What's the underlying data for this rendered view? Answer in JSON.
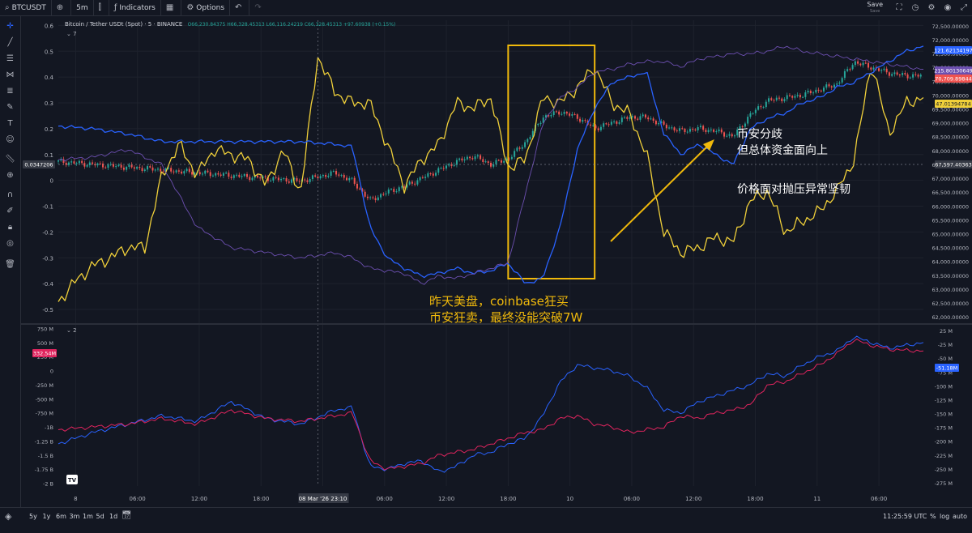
{
  "toolbar": {
    "symbol": "BTCUSDT",
    "interval": "5m",
    "indicators": "Indicators",
    "options": "Options",
    "save": "Save",
    "save_sub": "Save"
  },
  "legend": {
    "title": "Bitcoin / Tether USDt (Spot) · 5 · BINANCE",
    "ohlc": "O66,230.84375 H66,328.45313 L66,116.24219 C66,328.45313 +97.60938 (+0.15%)",
    "indicator1": "7",
    "indicator2": "2"
  },
  "annotations": {
    "us_session_1": "昨天美盘，coinbase狂买",
    "us_session_2": "币安狂卖，最终没能突破7W",
    "divergence_1": "币安分歧",
    "divergence_2": "但总体资金面向上",
    "resilience": "价格面对抛压异常坚韧"
  },
  "bottombar": {
    "ranges": [
      "5y",
      "1y",
      "6m",
      "3m",
      "1m",
      "5d",
      "1d"
    ],
    "clock": "11:25:59 UTC",
    "pct": "%",
    "log": "log",
    "auto": "auto"
  },
  "colors": {
    "yellow": "#f0d03a",
    "blue": "#2962ff",
    "purple": "#6c4fb0",
    "red": "#e0245e",
    "green": "#26a69a",
    "candle_red": "#ef5350",
    "highlight": "#f0b90b",
    "arrow": "#f0b90b"
  },
  "chart_data": [
    {
      "type": "line",
      "pane": "main",
      "left_axis_ticks": [
        "0.6",
        "0.5",
        "0.4",
        "0.3",
        "0.2",
        "0.1",
        "0",
        "-0.1",
        "-0.2",
        "-0.3",
        "-0.4",
        "-0.5"
      ],
      "left_ylim": [
        -0.55,
        0.62
      ],
      "right_axis_ticks": [
        "72,500.00000",
        "72,000.00000",
        "71,500.00000",
        "71,000.00000",
        "70,500.00000",
        "70,000.00000",
        "69,500.00000",
        "69,000.00000",
        "68,500.00000",
        "68,000.00000",
        "67,500.00000",
        "67,000.00000",
        "66,500.00000",
        "66,000.00000",
        "65,500.00000",
        "65,000.00000",
        "64,500.00000",
        "64,000.00000",
        "63,500.00000",
        "63,000.00000",
        "62,500.00000",
        "62,000.00000"
      ],
      "right_ylim": [
        61800,
        72700
      ],
      "x_ticks": [
        "8",
        "06:00",
        "12:00",
        "18:00",
        "08 Mar '26  23:10",
        "06:00",
        "12:00",
        "18:00",
        "10",
        "06:00",
        "12:00",
        "18:00",
        "11",
        "06:00"
      ],
      "value_labels": {
        "left_current": "0.0347206",
        "blue_last": "121.62134197",
        "red_last": "215.80130649",
        "price_last": "70,709.89844",
        "yellow_last": "47.01394784",
        "crosshair_price": "67,597.40363"
      },
      "series": [
        {
          "color": "yellow",
          "x": [
            0,
            2,
            4,
            6,
            8,
            10,
            12,
            14,
            16,
            18,
            20,
            22,
            24,
            26,
            28,
            30,
            32,
            34,
            36,
            38,
            40,
            42,
            44,
            46,
            48,
            50,
            52,
            54,
            56,
            58,
            60,
            62,
            64,
            66,
            68,
            70,
            72,
            74,
            76,
            78,
            80,
            82,
            84,
            86,
            88,
            90,
            92,
            94,
            96,
            98,
            100
          ],
          "y": [
            -0.47,
            -0.39,
            -0.33,
            -0.3,
            -0.26,
            -0.26,
            0.02,
            0.14,
            0.02,
            0.12,
            0.1,
            0.08,
            -0.02,
            0.12,
            -0.05,
            0.48,
            0.34,
            0.3,
            0.3,
            0.14,
            -0.02,
            0.08,
            0.14,
            0.3,
            0.28,
            0.32,
            0.05,
            0.08,
            0.32,
            0.3,
            0.36,
            0.44,
            0.3,
            0.26,
            0.1,
            -0.2,
            -0.28,
            -0.26,
            -0.22,
            -0.24,
            -0.08,
            -0.04,
            -0.2,
            -0.16,
            -0.12,
            -0.04,
            0.08,
            0.46,
            0.18,
            0.3,
            0.32
          ]
        },
        {
          "color": "blue",
          "x": [
            0,
            4,
            8,
            12,
            16,
            20,
            24,
            28,
            32,
            34,
            36,
            38,
            40,
            42,
            44,
            46,
            48,
            50,
            52,
            54,
            56,
            58,
            60,
            62,
            64,
            66,
            68,
            70,
            72,
            74,
            76,
            78,
            80,
            82,
            84,
            86,
            88,
            90,
            92,
            94,
            96,
            98,
            100
          ],
          "y": [
            0.21,
            0.2,
            0.18,
            0.15,
            0.15,
            0.15,
            0.15,
            0.15,
            0.14,
            0.13,
            -0.18,
            -0.3,
            -0.34,
            -0.37,
            -0.36,
            -0.34,
            -0.36,
            -0.35,
            -0.32,
            -0.4,
            -0.38,
            -0.18,
            0.12,
            0.28,
            0.38,
            0.4,
            0.42,
            0.18,
            0.1,
            0.14,
            0.1,
            0.06,
            0.2,
            0.24,
            0.26,
            0.3,
            0.32,
            0.36,
            0.38,
            0.42,
            0.46,
            0.5,
            0.52
          ]
        },
        {
          "color": "purple",
          "x": [
            0,
            4,
            8,
            12,
            16,
            20,
            24,
            28,
            32,
            34,
            36,
            38,
            40,
            42,
            44,
            46,
            48,
            50,
            52,
            54,
            56,
            58,
            60,
            62,
            64,
            66,
            68,
            70,
            72,
            74,
            76,
            78,
            80,
            82,
            84,
            86,
            88,
            90,
            92,
            94,
            96,
            98,
            100
          ],
          "y": [
            0.08,
            0.09,
            0.12,
            0.06,
            -0.18,
            -0.26,
            -0.28,
            -0.3,
            -0.28,
            -0.3,
            -0.34,
            -0.35,
            -0.36,
            -0.4,
            -0.37,
            -0.38,
            -0.36,
            -0.34,
            -0.32,
            -0.05,
            0.22,
            0.32,
            0.36,
            0.42,
            0.43,
            0.45,
            0.46,
            0.46,
            0.44,
            0.47,
            0.48,
            0.49,
            0.49,
            0.5,
            0.52,
            0.5,
            0.49,
            0.48,
            0.47,
            0.46,
            0.45,
            0.44,
            0.43
          ]
        }
      ],
      "price_series": {
        "x": [
          0,
          4,
          8,
          12,
          16,
          20,
          24,
          28,
          32,
          34,
          36,
          38,
          40,
          42,
          44,
          46,
          48,
          50,
          52,
          54,
          56,
          58,
          60,
          62,
          64,
          66,
          68,
          70,
          72,
          74,
          76,
          78,
          80,
          82,
          84,
          86,
          88,
          90,
          92,
          94,
          96,
          98,
          100
        ],
        "y": [
          67600,
          67500,
          67400,
          67300,
          67200,
          67100,
          67000,
          66900,
          67200,
          66900,
          66200,
          66500,
          66700,
          67000,
          67300,
          67600,
          67800,
          67500,
          67700,
          68300,
          69200,
          69400,
          69200,
          68800,
          69000,
          69200,
          69200,
          68900,
          68700,
          68800,
          68700,
          68500,
          69300,
          69800,
          69900,
          70000,
          70200,
          70400,
          71200,
          71000,
          70800,
          70700,
          70700
        ]
      }
    },
    {
      "type": "line",
      "pane": "lower",
      "left_axis_ticks": [
        "750 M",
        "500 M",
        "250 M",
        "0",
        "-250 M",
        "-500 M",
        "-750 M",
        "-1B",
        "-1.25 B",
        "-1.5 B",
        "-1.75 B",
        "-2 B"
      ],
      "left_ylim": [
        -2.05,
        0.8
      ],
      "right_axis_ticks": [
        "25 M",
        "-25 M",
        "-50 M",
        "-75 M",
        "-100 M",
        "-125 M",
        "-150 M",
        "-175 M",
        "-200 M",
        "-225 M",
        "-250 M",
        "-275 M"
      ],
      "value_labels": {
        "red_last": "332.54M",
        "blue_last": "-51.18M"
      },
      "series": [
        {
          "color": "blue",
          "x": [
            0,
            4,
            8,
            12,
            16,
            20,
            24,
            28,
            32,
            34,
            36,
            38,
            40,
            42,
            44,
            46,
            48,
            50,
            52,
            54,
            56,
            58,
            60,
            62,
            64,
            66,
            68,
            70,
            72,
            74,
            76,
            78,
            80,
            82,
            84,
            86,
            88,
            90,
            92,
            94,
            96,
            98,
            100
          ],
          "y": [
            -1.3,
            -1.1,
            -0.95,
            -0.8,
            -0.9,
            -0.55,
            -0.85,
            -0.95,
            -0.7,
            -0.65,
            -1.7,
            -1.75,
            -1.65,
            -1.6,
            -1.8,
            -1.7,
            -1.5,
            -1.45,
            -1.3,
            -1.2,
            -0.8,
            -0.2,
            0.1,
            0.05,
            0,
            -0.1,
            -0.3,
            -0.7,
            -0.75,
            -0.55,
            -0.45,
            -0.35,
            -0.25,
            -0.05,
            -0.1,
            0.1,
            0.25,
            0.35,
            0.6,
            0.5,
            0.4,
            0.45,
            0.5
          ]
        },
        {
          "color": "red",
          "x": [
            0,
            4,
            8,
            12,
            16,
            20,
            24,
            28,
            32,
            34,
            36,
            38,
            40,
            42,
            44,
            46,
            48,
            50,
            52,
            54,
            56,
            58,
            60,
            62,
            64,
            66,
            68,
            70,
            72,
            74,
            76,
            78,
            80,
            82,
            84,
            86,
            88,
            90,
            92,
            94,
            96,
            98,
            100
          ],
          "y": [
            -1.05,
            -1.0,
            -0.95,
            -0.85,
            -0.95,
            -0.7,
            -0.85,
            -0.9,
            -0.8,
            -0.75,
            -1.6,
            -1.75,
            -1.7,
            -1.65,
            -1.5,
            -1.45,
            -1.4,
            -1.3,
            -1.2,
            -1.1,
            -1.05,
            -0.85,
            -0.8,
            -0.95,
            -1.0,
            -1.1,
            -1.05,
            -1.0,
            -0.8,
            -0.85,
            -0.75,
            -0.7,
            -0.6,
            -0.25,
            -0.2,
            -0.05,
            0.1,
            0.3,
            0.55,
            0.45,
            0.38,
            0.36,
            0.35
          ]
        }
      ]
    }
  ]
}
